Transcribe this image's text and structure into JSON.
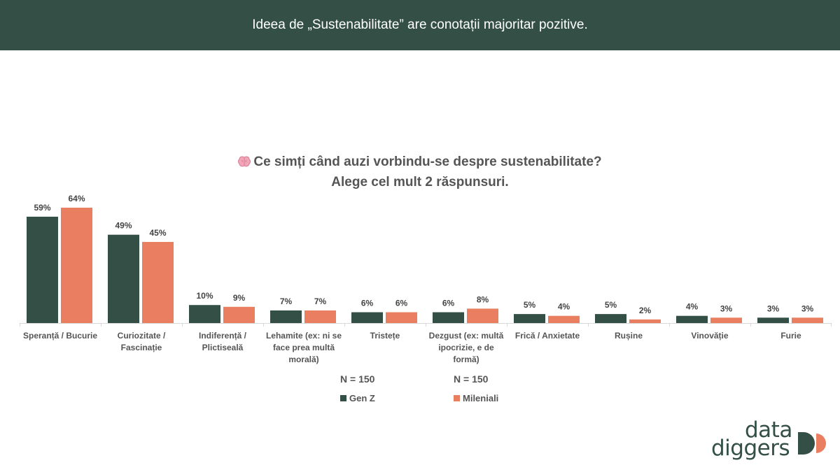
{
  "header": {
    "title": "Ideea de „Sustenabilitate” are conotații majoritar pozitive."
  },
  "question": {
    "line1": "Ce simți când auzi vorbindu-se despre sustenabilitate?",
    "line2": "Alege cel mult 2 răspunsuri."
  },
  "legend": {
    "genz": {
      "n": "N = 150",
      "label": "Gen Z"
    },
    "mil": {
      "n": "N = 150",
      "label": "Mileniali"
    }
  },
  "logo": {
    "word1": "data",
    "word2": "diggers"
  },
  "colors": {
    "genz": "#345046",
    "mil": "#E97F60",
    "header": "#345046"
  },
  "chart_data": {
    "type": "bar",
    "categories": [
      "Speranță / Bucurie",
      "Curiozitate / Fascinație",
      "Indiferență / Plictiseală",
      "Lehamite (ex: ni se face prea multă morală)",
      "Tristețe",
      "Dezgust (ex: multă ipocrizie, e de formă)",
      "Frică / Anxietate",
      "Rușine",
      "Vinovăție",
      "Furie"
    ],
    "series": [
      {
        "name": "Gen Z",
        "values": [
          59,
          49,
          10,
          7,
          6,
          6,
          5,
          5,
          4,
          3
        ],
        "labels": [
          "59%",
          "49%",
          "10%",
          "7%",
          "6%",
          "6%",
          "5%",
          "5%",
          "4%",
          "3%"
        ]
      },
      {
        "name": "Mileniali",
        "values": [
          64,
          45,
          9,
          7,
          6,
          8,
          4,
          2,
          3,
          3
        ],
        "labels": [
          "64%",
          "45%",
          "9%",
          "7%",
          "6%",
          "8%",
          "4%",
          "2%",
          "3%",
          "3%"
        ]
      }
    ],
    "ylim": [
      0,
      64
    ],
    "grid": false
  }
}
